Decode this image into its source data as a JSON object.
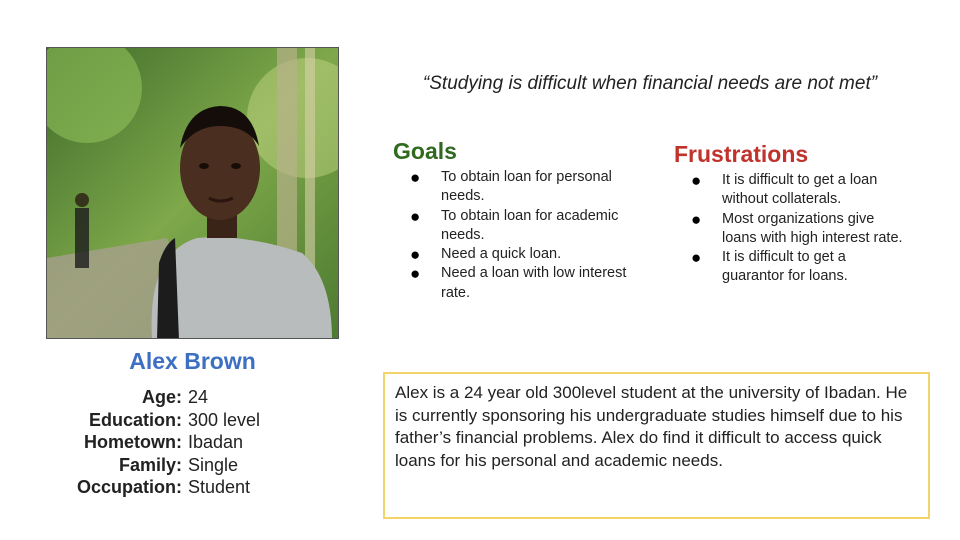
{
  "persona": {
    "name": "Alex Brown",
    "photo_alt": "portrait of young man with backpack in park",
    "attributes": [
      {
        "label": "Age:",
        "value": "24"
      },
      {
        "label": "Education:",
        "value": "300 level"
      },
      {
        "label": "Hometown:",
        "value": "Ibadan"
      },
      {
        "label": "Family:",
        "value": "Single"
      },
      {
        "label": "Occupation:",
        "value": "Student"
      }
    ]
  },
  "quote": "“Studying is difficult when financial needs are not met”",
  "goals": {
    "title": "Goals",
    "items": [
      "To obtain loan for personal needs.",
      "To obtain loan for academic needs.",
      "Need a quick loan.",
      "Need a loan with low interest rate."
    ]
  },
  "frustrations": {
    "title": "Frustrations",
    "items": [
      "It is difficult to get a loan without collaterals.",
      "Most organizations give loans with high interest rate.",
      "It is difficult to get a guarantor for loans."
    ]
  },
  "bio": "Alex is a 24 year old 300level student at the university of Ibadan. He is currently sponsoring his undergraduate studies himself due to his father’s financial problems. Alex do find it difficult to access quick loans for his personal and academic needs.",
  "colors": {
    "name": "#3d6fc2",
    "goals_title": "#2f6a1f",
    "frustrations_title": "#c0322b",
    "bio_border": "#f3d46b"
  }
}
